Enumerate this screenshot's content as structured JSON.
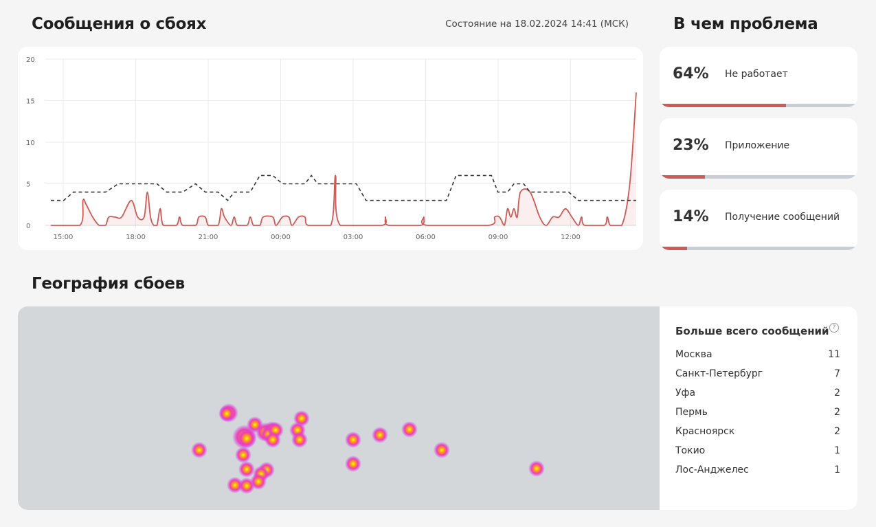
{
  "header": {
    "title": "Сообщения о сбоях",
    "status": "Состояние на 18.02.2024 14:41 (МСК)"
  },
  "problem": {
    "title": "В чем проблема",
    "items": [
      {
        "percent": "64%",
        "label": "Не работает",
        "value": 0.64
      },
      {
        "percent": "23%",
        "label": "Приложение",
        "value": 0.23
      },
      {
        "percent": "14%",
        "label": "Получение сообщений",
        "value": 0.14
      }
    ]
  },
  "geo": {
    "title": "География сбоев",
    "panel_title": "Больше всего сообщений",
    "help_icon": "?",
    "cities": [
      {
        "name": "Москва",
        "count": "11"
      },
      {
        "name": "Санкт-Петербург",
        "count": "7"
      },
      {
        "name": "Уфа",
        "count": "2"
      },
      {
        "name": "Пермь",
        "count": "2"
      },
      {
        "name": "Красноярск",
        "count": "2"
      },
      {
        "name": "Токио",
        "count": "1"
      },
      {
        "name": "Лос-Анджелес",
        "count": "1"
      }
    ]
  },
  "colors": {
    "accent": "#cc5a55",
    "baseline": "#333333",
    "bar_bg": "#c9ced6",
    "map_bg": "#d4d7d9"
  },
  "chart_data": {
    "type": "line",
    "ylim": [
      0,
      20
    ],
    "yticks": [
      "0",
      "5",
      "10",
      "15",
      "20"
    ],
    "xticks": [
      "15:00",
      "18:00",
      "21:00",
      "00:00",
      "03:00",
      "06:00",
      "09:00",
      "12:00"
    ],
    "series": [
      {
        "kind": "reports",
        "points": [
          [
            0,
            0
          ],
          [
            0.9,
            0
          ],
          [
            1.0,
            3
          ],
          [
            1.1,
            2.5
          ],
          [
            1.3,
            1
          ],
          [
            1.5,
            0
          ],
          [
            1.7,
            0
          ],
          [
            1.8,
            1
          ],
          [
            2.0,
            1
          ],
          [
            2.2,
            1
          ],
          [
            2.5,
            3
          ],
          [
            2.7,
            1
          ],
          [
            2.9,
            1
          ],
          [
            3.0,
            4
          ],
          [
            3.1,
            1
          ],
          [
            3.2,
            0
          ],
          [
            3.3,
            0
          ],
          [
            3.4,
            2
          ],
          [
            3.5,
            0
          ],
          [
            3.9,
            0
          ],
          [
            4.0,
            1
          ],
          [
            4.1,
            0
          ],
          [
            4.5,
            0
          ],
          [
            4.6,
            1
          ],
          [
            4.8,
            1
          ],
          [
            4.9,
            0
          ],
          [
            5.2,
            0
          ],
          [
            5.3,
            2
          ],
          [
            5.4,
            1
          ],
          [
            5.6,
            0
          ],
          [
            5.7,
            1
          ],
          [
            5.8,
            0
          ],
          [
            6.1,
            0
          ],
          [
            6.2,
            1
          ],
          [
            6.3,
            0
          ],
          [
            6.5,
            0
          ],
          [
            6.6,
            1
          ],
          [
            6.9,
            1
          ],
          [
            7.0,
            0
          ],
          [
            7.2,
            1
          ],
          [
            7.4,
            1
          ],
          [
            7.5,
            0
          ],
          [
            7.7,
            1
          ],
          [
            7.9,
            1
          ],
          [
            8.0,
            0
          ],
          [
            8.7,
            0
          ],
          [
            8.85,
            6
          ],
          [
            9.0,
            0
          ],
          [
            10.3,
            0
          ],
          [
            10.4,
            1
          ],
          [
            10.5,
            0
          ],
          [
            11.5,
            0
          ],
          [
            11.6,
            1
          ],
          [
            11.7,
            0
          ],
          [
            13.6,
            0
          ],
          [
            13.8,
            1
          ],
          [
            13.95,
            1
          ],
          [
            14.1,
            0
          ],
          [
            14.2,
            2
          ],
          [
            14.3,
            1
          ],
          [
            14.4,
            2
          ],
          [
            14.5,
            1
          ],
          [
            14.6,
            4
          ],
          [
            14.9,
            4
          ],
          [
            15.2,
            1
          ],
          [
            15.4,
            0
          ],
          [
            15.6,
            1
          ],
          [
            15.8,
            1
          ],
          [
            16.0,
            2
          ],
          [
            16.2,
            1
          ],
          [
            16.4,
            0
          ],
          [
            16.5,
            1
          ],
          [
            16.6,
            0
          ],
          [
            17.2,
            0
          ],
          [
            17.3,
            1
          ],
          [
            17.4,
            0
          ],
          [
            17.75,
            0
          ],
          [
            18.0,
            5
          ],
          [
            18.2,
            16
          ]
        ]
      },
      {
        "kind": "baseline",
        "points": [
          [
            0,
            3
          ],
          [
            0.4,
            3
          ],
          [
            0.7,
            4
          ],
          [
            1.7,
            4
          ],
          [
            2.1,
            5
          ],
          [
            3.3,
            5
          ],
          [
            3.6,
            4
          ],
          [
            4.1,
            4
          ],
          [
            4.5,
            5
          ],
          [
            4.8,
            4
          ],
          [
            5.2,
            4
          ],
          [
            5.5,
            3
          ],
          [
            5.7,
            4
          ],
          [
            6.2,
            4
          ],
          [
            6.5,
            6
          ],
          [
            6.9,
            6
          ],
          [
            7.2,
            5
          ],
          [
            7.9,
            5
          ],
          [
            8.1,
            6
          ],
          [
            8.3,
            5
          ],
          [
            9.5,
            5
          ],
          [
            9.8,
            3
          ],
          [
            12.3,
            3
          ],
          [
            12.6,
            6
          ],
          [
            13.7,
            6
          ],
          [
            13.9,
            4
          ],
          [
            14.2,
            4
          ],
          [
            14.4,
            5
          ],
          [
            14.7,
            5
          ],
          [
            14.9,
            4
          ],
          [
            16.1,
            4
          ],
          [
            16.4,
            3
          ],
          [
            17.3,
            3
          ],
          [
            18.2,
            3
          ]
        ]
      }
    ]
  }
}
